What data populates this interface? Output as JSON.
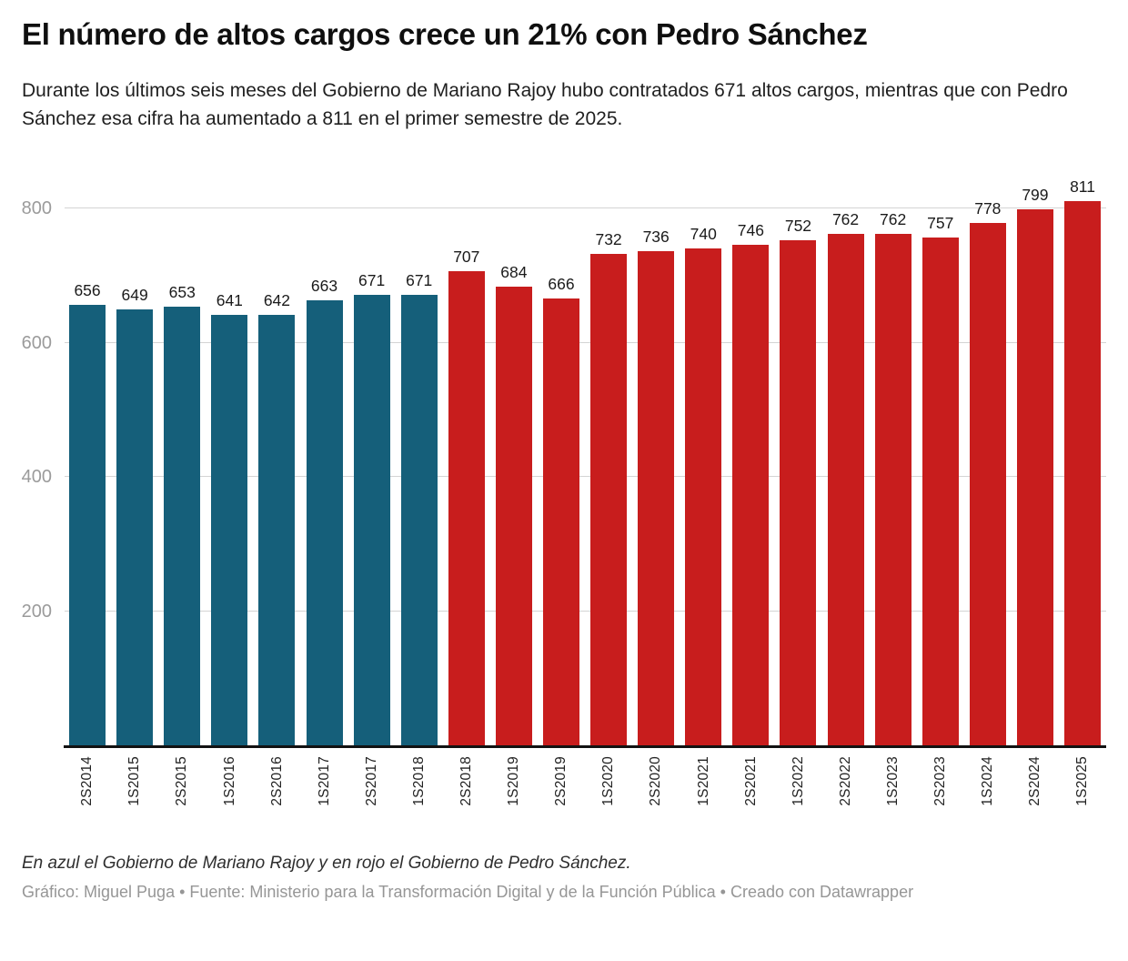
{
  "header": {
    "title": "El número de altos cargos crece un 21% con Pedro Sánchez",
    "subtitle": "Durante los últimos seis meses del Gobierno de Mariano Rajoy hubo contratados 671 altos cargos, mientras que con Pedro Sánchez esa cifra ha aumentado a 811 en el primer semestre de 2025."
  },
  "chart_data": {
    "type": "bar",
    "title": "El número de altos cargos crece un 21% con Pedro Sánchez",
    "categories": [
      "2S2014",
      "1S2015",
      "2S2015",
      "1S2016",
      "2S2016",
      "1S2017",
      "2S2017",
      "1S2018",
      "2S2018",
      "1S2019",
      "2S2019",
      "1S2020",
      "2S2020",
      "1S2021",
      "2S2021",
      "1S2022",
      "2S2022",
      "1S2023",
      "2S2023",
      "1S2024",
      "2S2024",
      "1S2025"
    ],
    "values": [
      656,
      649,
      653,
      641,
      642,
      663,
      671,
      671,
      707,
      684,
      666,
      732,
      736,
      740,
      746,
      752,
      762,
      762,
      757,
      778,
      799,
      811
    ],
    "split_index": 8,
    "series": [
      {
        "name": "Gobierno de Mariano Rajoy",
        "color": "#155f7a",
        "range": "2S2014 a 1S2018"
      },
      {
        "name": "Gobierno de Pedro Sánchez",
        "color": "#c81d1d",
        "range": "2S2018 a 1S2025"
      }
    ],
    "colors": {
      "rajoy": "#155f7a",
      "sanchez": "#c81d1d"
    },
    "y_ticks": [
      200,
      400,
      600,
      800
    ],
    "ylim": [
      0,
      840
    ],
    "xlabel": "",
    "ylabel": "",
    "grid": "horizontal",
    "legend": "none",
    "value_labels": "above each bar",
    "x_label_rotation": -90
  },
  "footer": {
    "note": "En azul el Gobierno de Mariano Rajoy y en rojo el Gobierno de Pedro Sánchez.",
    "credit": "Gráfico: Miguel Puga • Fuente: Ministerio para la Transformación Digital y de la Función Pública • Creado con Datawrapper"
  }
}
